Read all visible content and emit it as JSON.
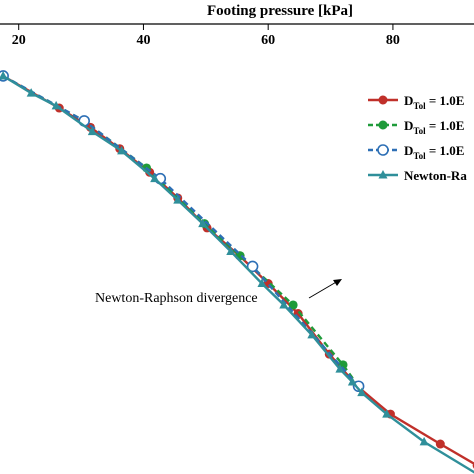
{
  "chart_data": {
    "type": "line",
    "xlabel": "Footing pressure [kPa]",
    "xticks": [
      20,
      40,
      60,
      80
    ],
    "xlim": [
      17,
      93
    ],
    "ylim": [
      0,
      1
    ],
    "legend_position": "right",
    "series": [
      {
        "name": "D_Tol = 1.0E",
        "color": "#c0302a",
        "marker": "circle-filled",
        "line": "solid",
        "x": [
          17.5,
          26.5,
          31.5,
          36.2,
          41.0,
          45.5,
          50.2,
          55.4,
          60.0,
          64.8,
          69.8,
          74.3,
          79.6,
          87.6,
          93.5
        ],
        "y": [
          0.93,
          0.855,
          0.81,
          0.76,
          0.705,
          0.645,
          0.575,
          0.51,
          0.445,
          0.375,
          0.28,
          0.205,
          0.14,
          0.07,
          0.02
        ]
      },
      {
        "name": "D_Tol = 1.0E",
        "color": "#1f9b3a",
        "marker": "circle-filled",
        "line": "dashed",
        "x": [
          17.5,
          30.5,
          40.5,
          49.8,
          55.5,
          64.0,
          72.0,
          74.5
        ],
        "y": [
          0.93,
          0.825,
          0.715,
          0.585,
          0.51,
          0.395,
          0.255,
          0.205
        ]
      },
      {
        "name": "D_Tol = 1.0E",
        "color": "#2d6fb5",
        "marker": "circle-open",
        "line": "dashed",
        "x": [
          17.5,
          30.5,
          42.7,
          57.5,
          74.5
        ],
        "y": [
          0.93,
          0.825,
          0.69,
          0.485,
          0.205
        ]
      },
      {
        "name": "Newton-Ra",
        "color": "#2f8f9a",
        "marker": "triangle",
        "line": "solid",
        "x": [
          17.5,
          22.0,
          26.0,
          31.8,
          36.5,
          41.8,
          45.5,
          49.5,
          54.0,
          59.0,
          62.5,
          67.0,
          71.5,
          73.5,
          75.0,
          79.0,
          85.0,
          93.5
        ],
        "y": [
          0.93,
          0.89,
          0.86,
          0.8,
          0.755,
          0.69,
          0.64,
          0.585,
          0.52,
          0.445,
          0.395,
          0.325,
          0.245,
          0.215,
          0.19,
          0.14,
          0.075,
          0.0
        ]
      }
    ],
    "annotation": {
      "text": "Newton-Raphson divergence",
      "target_x": 74.5,
      "target_y": 0.205
    }
  }
}
